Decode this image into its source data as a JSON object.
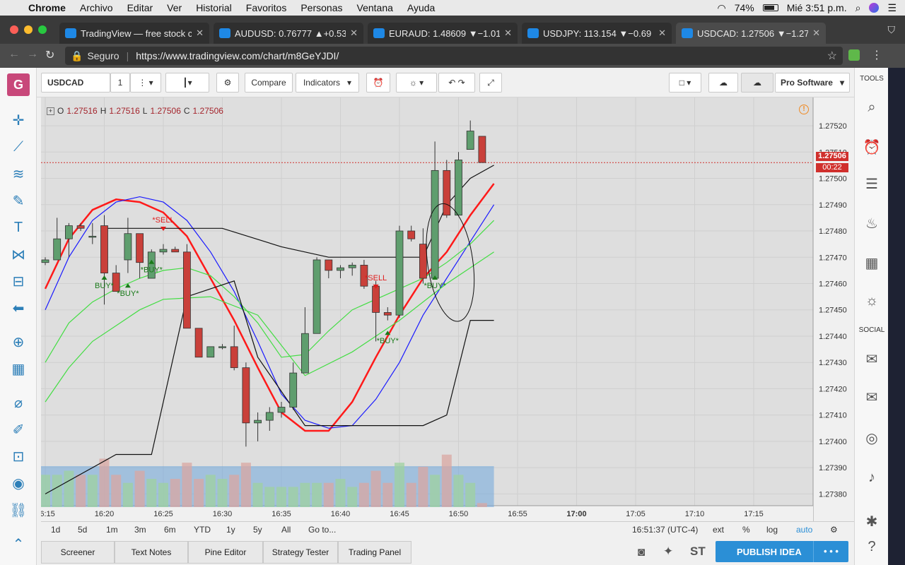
{
  "menubar": {
    "app": "Chrome",
    "items": [
      "Archivo",
      "Editar",
      "Ver",
      "Historial",
      "Favoritos",
      "Personas",
      "Ventana",
      "Ayuda"
    ],
    "battery": "74%",
    "clock": "Mié 3:51 p.m."
  },
  "tabs": [
    {
      "label": "TradingView — free stock ch"
    },
    {
      "label": "AUDUSD: 0.76777 ▲+0.53"
    },
    {
      "label": "EURAUD: 1.48609 ▼−1.01"
    },
    {
      "label": "USDJPY: 113.154 ▼−0.69"
    },
    {
      "label": "USDCAD: 1.27506 ▼−1.27"
    }
  ],
  "address": {
    "secure_label": "Seguro",
    "url": "https://www.tradingview.com/chart/m8GeYJDI/"
  },
  "toolbar": {
    "symbol": "USDCAD",
    "interval": "1",
    "compare": "Compare",
    "indicators": "Indicators",
    "pro_software": "Pro Software"
  },
  "legend": {
    "prefix_o": "O",
    "o": "1.27516",
    "prefix_h": "H",
    "h": "1.27516",
    "prefix_l": "L",
    "l": "1.27506",
    "prefix_c": "C",
    "c": "1.27506"
  },
  "price_tag": {
    "price": "1.27506",
    "countdown": "00:22"
  },
  "chart_data": {
    "type": "candlestick",
    "symbol": "USDCAD",
    "interval": "1m (1-minute candles)",
    "ylim": [
      1.27375,
      1.27527
    ],
    "y_ticks": [
      "1.27520",
      "1.27510",
      "1.27500",
      "1.27490",
      "1.27480",
      "1.27470",
      "1.27460",
      "1.27450",
      "1.27440",
      "1.27430",
      "1.27420",
      "1.27410",
      "1.27400",
      "1.27390",
      "1.27380"
    ],
    "x_ticks": [
      "16:15",
      "16:20",
      "16:25",
      "16:30",
      "16:35",
      "16:40",
      "16:45",
      "16:50",
      "16:55",
      "17:00",
      "17:05",
      "17:10",
      "17:15"
    ],
    "current_price": 1.27506,
    "candles": [
      {
        "t": "16:15",
        "o": 1.27468,
        "h": 1.2747,
        "l": 1.27467,
        "c": 1.27469
      },
      {
        "t": "16:16",
        "o": 1.27469,
        "h": 1.27485,
        "l": 1.27469,
        "c": 1.27477
      },
      {
        "t": "16:17",
        "o": 1.27477,
        "h": 1.27483,
        "l": 1.2747,
        "c": 1.27482
      },
      {
        "t": "16:18",
        "o": 1.27482,
        "h": 1.27483,
        "l": 1.2748,
        "c": 1.27481
      },
      {
        "t": "16:19",
        "o": 1.27478,
        "h": 1.27483,
        "l": 1.27475,
        "c": 1.27478
      },
      {
        "t": "16:20",
        "o": 1.27482,
        "h": 1.27486,
        "l": 1.27452,
        "c": 1.27464
      },
      {
        "t": "16:21",
        "o": 1.27464,
        "h": 1.27467,
        "l": 1.27457,
        "c": 1.27457
      },
      {
        "t": "16:22",
        "o": 1.27469,
        "h": 1.27485,
        "l": 1.27464,
        "c": 1.27479
      },
      {
        "t": "16:23",
        "o": 1.27479,
        "h": 1.27479,
        "l": 1.27462,
        "c": 1.27468
      },
      {
        "t": "16:24",
        "o": 1.27462,
        "h": 1.27473,
        "l": 1.27462,
        "c": 1.27472
      },
      {
        "t": "16:25",
        "o": 1.27472,
        "h": 1.27475,
        "l": 1.27471,
        "c": 1.27473
      },
      {
        "t": "16:26",
        "o": 1.27473,
        "h": 1.27474,
        "l": 1.27472,
        "c": 1.27472
      },
      {
        "t": "16:27",
        "o": 1.27472,
        "h": 1.27475,
        "l": 1.27443,
        "c": 1.27443
      },
      {
        "t": "16:28",
        "o": 1.27443,
        "h": 1.27443,
        "l": 1.27432,
        "c": 1.27432
      },
      {
        "t": "16:29",
        "o": 1.27432,
        "h": 1.27436,
        "l": 1.27432,
        "c": 1.27436
      },
      {
        "t": "16:30",
        "o": 1.27436,
        "h": 1.27437,
        "l": 1.27435,
        "c": 1.27436
      },
      {
        "t": "16:31",
        "o": 1.27436,
        "h": 1.27444,
        "l": 1.27427,
        "c": 1.27428
      },
      {
        "t": "16:32",
        "o": 1.27428,
        "h": 1.2743,
        "l": 1.27398,
        "c": 1.27407
      },
      {
        "t": "16:33",
        "o": 1.27407,
        "h": 1.27411,
        "l": 1.274,
        "c": 1.27408
      },
      {
        "t": "16:34",
        "o": 1.27408,
        "h": 1.27413,
        "l": 1.27404,
        "c": 1.27411
      },
      {
        "t": "16:35",
        "o": 1.27411,
        "h": 1.27415,
        "l": 1.27409,
        "c": 1.27413
      },
      {
        "t": "16:36",
        "o": 1.27413,
        "h": 1.2743,
        "l": 1.27412,
        "c": 1.27426
      },
      {
        "t": "16:37",
        "o": 1.27426,
        "h": 1.27451,
        "l": 1.27426,
        "c": 1.27441
      },
      {
        "t": "16:38",
        "o": 1.27441,
        "h": 1.2747,
        "l": 1.27441,
        "c": 1.27469
      },
      {
        "t": "16:39",
        "o": 1.27469,
        "h": 1.27469,
        "l": 1.27462,
        "c": 1.27465
      },
      {
        "t": "16:40",
        "o": 1.27465,
        "h": 1.27467,
        "l": 1.27462,
        "c": 1.27466
      },
      {
        "t": "16:41",
        "o": 1.27466,
        "h": 1.27468,
        "l": 1.27463,
        "c": 1.27467
      },
      {
        "t": "16:42",
        "o": 1.27467,
        "h": 1.27469,
        "l": 1.27458,
        "c": 1.27459
      },
      {
        "t": "16:43",
        "o": 1.27459,
        "h": 1.27461,
        "l": 1.27438,
        "c": 1.27449
      },
      {
        "t": "16:44",
        "o": 1.27449,
        "h": 1.27451,
        "l": 1.27446,
        "c": 1.27448
      },
      {
        "t": "16:45",
        "o": 1.27448,
        "h": 1.27482,
        "l": 1.27447,
        "c": 1.2748
      },
      {
        "t": "16:46",
        "o": 1.2748,
        "h": 1.27482,
        "l": 1.27476,
        "c": 1.27477
      },
      {
        "t": "16:47",
        "o": 1.27475,
        "h": 1.27481,
        "l": 1.2746,
        "c": 1.27462
      },
      {
        "t": "16:48",
        "o": 1.27462,
        "h": 1.27514,
        "l": 1.27462,
        "c": 1.27503
      },
      {
        "t": "16:49",
        "o": 1.27503,
        "h": 1.27507,
        "l": 1.27485,
        "c": 1.27486
      },
      {
        "t": "16:50",
        "o": 1.27486,
        "h": 1.2751,
        "l": 1.27486,
        "c": 1.27507
      },
      {
        "t": "16:51",
        "o": 1.27511,
        "h": 1.27522,
        "l": 1.27511,
        "c": 1.27518
      },
      {
        "t": "16:52",
        "o": 1.27516,
        "h": 1.27516,
        "l": 1.27506,
        "c": 1.27506
      }
    ],
    "signals": [
      {
        "label": "BUY*",
        "t": "16:20",
        "price": 1.27462,
        "type": "buy"
      },
      {
        "label": "*BUY*",
        "t": "16:22",
        "price": 1.27459,
        "type": "buy"
      },
      {
        "label": "*BUY*",
        "t": "16:24",
        "price": 1.27468,
        "type": "buy"
      },
      {
        "label": "*SELL",
        "t": "16:25",
        "price": 1.2748,
        "type": "sell"
      },
      {
        "label": "*SELL",
        "t": "16:43",
        "price": 1.27458,
        "type": "sell"
      },
      {
        "label": "*BUY*",
        "t": "16:44",
        "price": 1.27441,
        "type": "buy"
      },
      {
        "label": "*BUY*",
        "t": "16:48",
        "price": 1.27462,
        "type": "buy"
      }
    ],
    "indicators": [
      {
        "name": "red-thick",
        "color": "#ff1a1a",
        "points": [
          [
            0,
            1.27458
          ],
          [
            2,
            1.27477
          ],
          [
            4,
            1.27488
          ],
          [
            6,
            1.27492
          ],
          [
            8,
            1.27491
          ],
          [
            10,
            1.27487
          ],
          [
            12,
            1.27478
          ],
          [
            14,
            1.27462
          ],
          [
            16,
            1.27446
          ],
          [
            18,
            1.27428
          ],
          [
            20,
            1.27411
          ],
          [
            22,
            1.27404
          ],
          [
            24,
            1.27404
          ],
          [
            26,
            1.27415
          ],
          [
            28,
            1.27432
          ],
          [
            30,
            1.27448
          ],
          [
            32,
            1.27462
          ],
          [
            34,
            1.27472
          ],
          [
            36,
            1.27486
          ],
          [
            38,
            1.27498
          ]
        ]
      },
      {
        "name": "blue",
        "color": "#1a1aff",
        "points": [
          [
            0,
            1.2745
          ],
          [
            2,
            1.2747
          ],
          [
            4,
            1.27484
          ],
          [
            6,
            1.27491
          ],
          [
            8,
            1.27493
          ],
          [
            10,
            1.27491
          ],
          [
            12,
            1.27484
          ],
          [
            14,
            1.27472
          ],
          [
            16,
            1.27457
          ],
          [
            18,
            1.27438
          ],
          [
            20,
            1.27418
          ],
          [
            22,
            1.27408
          ],
          [
            24,
            1.27405
          ],
          [
            26,
            1.27406
          ],
          [
            28,
            1.27416
          ],
          [
            30,
            1.2743
          ],
          [
            32,
            1.27448
          ],
          [
            34,
            1.27462
          ],
          [
            36,
            1.27476
          ],
          [
            38,
            1.2749
          ]
        ]
      },
      {
        "name": "green-1",
        "color": "#44dd44",
        "points": [
          [
            0,
            1.2743
          ],
          [
            2,
            1.27445
          ],
          [
            4,
            1.27453
          ],
          [
            6,
            1.27458
          ],
          [
            8,
            1.27462
          ],
          [
            10,
            1.27465
          ],
          [
            12,
            1.27466
          ],
          [
            14,
            1.27463
          ],
          [
            16,
            1.27455
          ],
          [
            18,
            1.27445
          ],
          [
            20,
            1.27432
          ],
          [
            22,
            1.27433
          ],
          [
            24,
            1.27442
          ],
          [
            26,
            1.2745
          ],
          [
            28,
            1.27454
          ],
          [
            30,
            1.27458
          ],
          [
            32,
            1.27462
          ],
          [
            34,
            1.27468
          ],
          [
            36,
            1.27475
          ],
          [
            38,
            1.27484
          ]
        ]
      },
      {
        "name": "green-2",
        "color": "#44dd44",
        "points": [
          [
            0,
            1.27415
          ],
          [
            2,
            1.27428
          ],
          [
            4,
            1.27438
          ],
          [
            6,
            1.27444
          ],
          [
            8,
            1.2745
          ],
          [
            10,
            1.27454
          ],
          [
            14,
            1.27455
          ],
          [
            18,
            1.27448
          ],
          [
            22,
            1.27425
          ],
          [
            26,
            1.27434
          ],
          [
            30,
            1.27446
          ],
          [
            34,
            1.2746
          ],
          [
            38,
            1.27472
          ]
        ]
      },
      {
        "name": "black-channel-upper",
        "color": "#111",
        "points": [
          [
            5,
            1.27481
          ],
          [
            15,
            1.27481
          ],
          [
            20,
            1.27474
          ],
          [
            24,
            1.2747
          ],
          [
            28,
            1.2747
          ],
          [
            32,
            1.2747
          ],
          [
            34,
            1.2749
          ],
          [
            36,
            1.275
          ],
          [
            38,
            1.27505
          ]
        ]
      },
      {
        "name": "black-channel-lower",
        "color": "#111",
        "points": [
          [
            0,
            1.2738
          ],
          [
            6,
            1.27395
          ],
          [
            9,
            1.27395
          ],
          [
            12,
            1.27455
          ],
          [
            16,
            1.27461
          ],
          [
            18,
            1.27432
          ],
          [
            22,
            1.27406
          ],
          [
            32,
            1.27406
          ],
          [
            34,
            1.2741
          ],
          [
            36,
            1.27446
          ],
          [
            38,
            1.27446
          ]
        ]
      }
    ],
    "volume": [
      8,
      8,
      9,
      8,
      8,
      12,
      8,
      6,
      9,
      7,
      6,
      7,
      11,
      7,
      8,
      7,
      8,
      11,
      6,
      5,
      5,
      5,
      6,
      6,
      6,
      7,
      5,
      6,
      9,
      6,
      11,
      6,
      10,
      8,
      13,
      8,
      6,
      1
    ]
  },
  "time_axis_bottom": {
    "ranges": [
      "1d",
      "5d",
      "1m",
      "3m",
      "6m",
      "YTD",
      "1y",
      "5y",
      "All"
    ],
    "goto": "Go to...",
    "clock": "16:51:37 (UTC-4)",
    "ext": "ext",
    "percent": "%",
    "log": "log",
    "auto": "auto"
  },
  "footer_tabs": [
    "Screener",
    "Text Notes",
    "Pine Editor",
    "Strategy Tester",
    "Trading Panel"
  ],
  "publish": "PUBLISH IDEA",
  "st_label": "ST",
  "right_panel": {
    "tools": "TOOLS",
    "social": "SOCIAL"
  },
  "colors": {
    "up": "#5f9e6e",
    "down": "#c9403a",
    "accent": "#2b8fd6"
  }
}
